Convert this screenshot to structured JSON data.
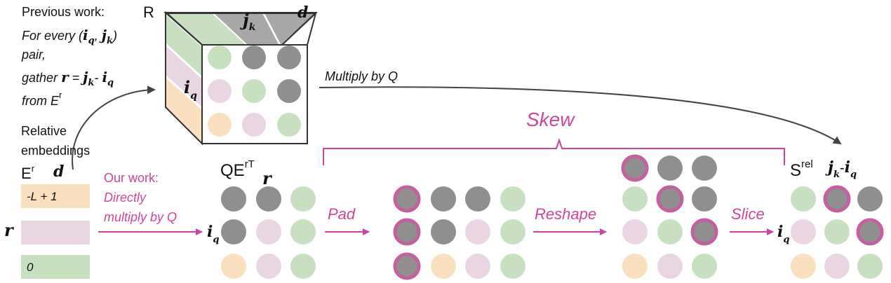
{
  "top_left": {
    "line1": "Previous work:",
    "line2_prefix": "For every (",
    "iq_i": "i",
    "iq_q": "q",
    "comma": ",",
    "jk_j": "j",
    "jk_k": "k",
    "line2_suffix": ")",
    "line3": "pair,",
    "line4_prefix": "gather",
    "r": "r",
    "eq": "=",
    "minus": "-",
    "line5_prefix": "from E",
    "line5_sup": "r"
  },
  "cube": {
    "label": "R",
    "d": "d",
    "top_var_main": "j",
    "top_var_sub": "k",
    "side_var_main": "i",
    "side_var_sub": "q"
  },
  "multiply_label": "Multiply by Q",
  "skew_label": "Skew",
  "rel_embed": {
    "line1": "Relative",
    "line2": "embeddings",
    "er_main": "E",
    "er_sup": "r",
    "d": "d",
    "r": "r",
    "rows": [
      "-L + 1",
      "",
      "0"
    ]
  },
  "our_work": {
    "line1": "Our work:",
    "line2": "Directly",
    "line3": "multiply by Q"
  },
  "qer": {
    "main": "QE",
    "sup": "rT",
    "r": "r",
    "iq_i": "i",
    "iq_q": "q"
  },
  "steps": [
    "Pad",
    "Reshape",
    "Slice"
  ],
  "srel": {
    "main": "S",
    "sup": "rel",
    "j": "j",
    "k": "k",
    "minus": "-",
    "i": "i",
    "q": "q",
    "side_i": "i",
    "side_q": "q"
  },
  "colors": {
    "pink": "#d0449c",
    "orange": "#fbe0c0",
    "lilac": "#ead5e3",
    "green": "#c6e0c0",
    "gray": "#8f8f8f",
    "ring": "#c45fa0"
  }
}
